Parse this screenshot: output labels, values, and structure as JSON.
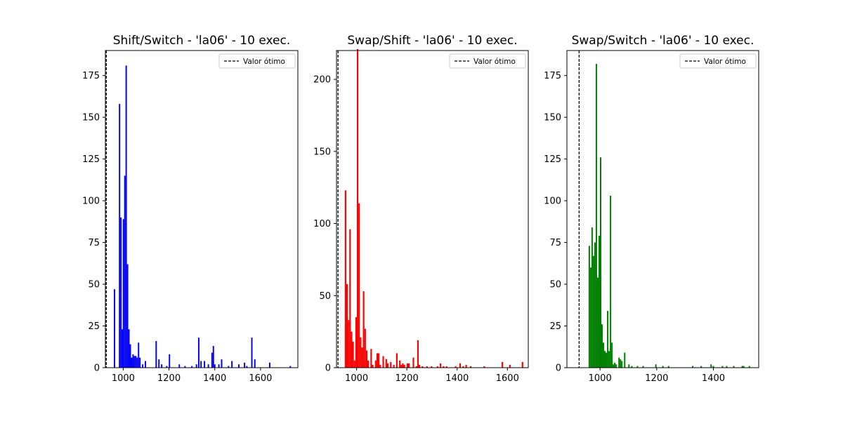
{
  "chart_data": [
    {
      "type": "bar",
      "title": "Shift/Switch - 'la06' - 10 exec.",
      "color": "#0000ff",
      "xlim": [
        922,
        1763
      ],
      "ylim": [
        0,
        190
      ],
      "xticks": [
        1000,
        1200,
        1400,
        1600
      ],
      "yticks": [
        0,
        25,
        50,
        75,
        100,
        125,
        150,
        175
      ],
      "optimal_value": 926,
      "legend": {
        "label": "Valor ótimo",
        "position": "top-right"
      },
      "bars": [
        {
          "x": 962,
          "y": 47
        },
        {
          "x": 984,
          "y": 158
        },
        {
          "x": 990,
          "y": 90
        },
        {
          "x": 996,
          "y": 23
        },
        {
          "x": 1001,
          "y": 89
        },
        {
          "x": 1007,
          "y": 115
        },
        {
          "x": 1013,
          "y": 181
        },
        {
          "x": 1019,
          "y": 62
        },
        {
          "x": 1025,
          "y": 23
        },
        {
          "x": 1031,
          "y": 14
        },
        {
          "x": 1037,
          "y": 6
        },
        {
          "x": 1043,
          "y": 8
        },
        {
          "x": 1049,
          "y": 7
        },
        {
          "x": 1055,
          "y": 7
        },
        {
          "x": 1061,
          "y": 6
        },
        {
          "x": 1067,
          "y": 15
        },
        {
          "x": 1073,
          "y": 6
        },
        {
          "x": 1085,
          "y": 2
        },
        {
          "x": 1097,
          "y": 4
        },
        {
          "x": 1144,
          "y": 16
        },
        {
          "x": 1156,
          "y": 5
        },
        {
          "x": 1168,
          "y": 2
        },
        {
          "x": 1190,
          "y": 1
        },
        {
          "x": 1202,
          "y": 8
        },
        {
          "x": 1245,
          "y": 2
        },
        {
          "x": 1270,
          "y": 1
        },
        {
          "x": 1300,
          "y": 1
        },
        {
          "x": 1320,
          "y": 2
        },
        {
          "x": 1330,
          "y": 18
        },
        {
          "x": 1340,
          "y": 4
        },
        {
          "x": 1355,
          "y": 4
        },
        {
          "x": 1372,
          "y": 2
        },
        {
          "x": 1388,
          "y": 9
        },
        {
          "x": 1394,
          "y": 13
        },
        {
          "x": 1400,
          "y": 2
        },
        {
          "x": 1418,
          "y": 2
        },
        {
          "x": 1430,
          "y": 5
        },
        {
          "x": 1460,
          "y": 1
        },
        {
          "x": 1475,
          "y": 4
        },
        {
          "x": 1505,
          "y": 2
        },
        {
          "x": 1530,
          "y": 3
        },
        {
          "x": 1540,
          "y": 1
        },
        {
          "x": 1562,
          "y": 18
        },
        {
          "x": 1575,
          "y": 5
        },
        {
          "x": 1640,
          "y": 3
        },
        {
          "x": 1730,
          "y": 1
        }
      ]
    },
    {
      "type": "bar",
      "title": "Swap/Shift - 'la06' - 10 exec.",
      "color": "#ff0000",
      "xlim": [
        920,
        1683
      ],
      "ylim": [
        0,
        220
      ],
      "xticks": [
        1000,
        1200,
        1400,
        1600
      ],
      "yticks": [
        0,
        50,
        100,
        150,
        200
      ],
      "optimal_value": 926,
      "legend": {
        "label": "Valor ótimo",
        "position": "top-right"
      },
      "bars": [
        {
          "x": 956,
          "y": 123
        },
        {
          "x": 962,
          "y": 58
        },
        {
          "x": 968,
          "y": 33
        },
        {
          "x": 974,
          "y": 96
        },
        {
          "x": 980,
          "y": 25
        },
        {
          "x": 986,
          "y": 18
        },
        {
          "x": 992,
          "y": 5
        },
        {
          "x": 998,
          "y": 35
        },
        {
          "x": 1004,
          "y": 221
        },
        {
          "x": 1010,
          "y": 114
        },
        {
          "x": 1016,
          "y": 21
        },
        {
          "x": 1022,
          "y": 14
        },
        {
          "x": 1028,
          "y": 53
        },
        {
          "x": 1034,
          "y": 27
        },
        {
          "x": 1040,
          "y": 12
        },
        {
          "x": 1046,
          "y": 5
        },
        {
          "x": 1058,
          "y": 13
        },
        {
          "x": 1064,
          "y": 2
        },
        {
          "x": 1076,
          "y": 5
        },
        {
          "x": 1082,
          "y": 10
        },
        {
          "x": 1088,
          "y": 10
        },
        {
          "x": 1094,
          "y": 2
        },
        {
          "x": 1106,
          "y": 8
        },
        {
          "x": 1118,
          "y": 6
        },
        {
          "x": 1124,
          "y": 3
        },
        {
          "x": 1136,
          "y": 4
        },
        {
          "x": 1148,
          "y": 2
        },
        {
          "x": 1160,
          "y": 10
        },
        {
          "x": 1172,
          "y": 5
        },
        {
          "x": 1178,
          "y": 2
        },
        {
          "x": 1184,
          "y": 3
        },
        {
          "x": 1190,
          "y": 2
        },
        {
          "x": 1202,
          "y": 3
        },
        {
          "x": 1208,
          "y": 3
        },
        {
          "x": 1226,
          "y": 7
        },
        {
          "x": 1238,
          "y": 1
        },
        {
          "x": 1244,
          "y": 19
        },
        {
          "x": 1250,
          "y": 2
        },
        {
          "x": 1262,
          "y": 1
        },
        {
          "x": 1280,
          "y": 1
        },
        {
          "x": 1298,
          "y": 1
        },
        {
          "x": 1322,
          "y": 1
        },
        {
          "x": 1334,
          "y": 3
        },
        {
          "x": 1346,
          "y": 1
        },
        {
          "x": 1358,
          "y": 1
        },
        {
          "x": 1394,
          "y": 1
        },
        {
          "x": 1412,
          "y": 3
        },
        {
          "x": 1424,
          "y": 1
        },
        {
          "x": 1436,
          "y": 2
        },
        {
          "x": 1454,
          "y": 1
        },
        {
          "x": 1508,
          "y": 1
        },
        {
          "x": 1580,
          "y": 4
        },
        {
          "x": 1610,
          "y": 2
        },
        {
          "x": 1660,
          "y": 4
        }
      ]
    },
    {
      "type": "bar",
      "title": "Swap/Switch - 'la06' - 10 exec.",
      "color": "#008000",
      "xlim": [
        883,
        1560
      ],
      "ylim": [
        0,
        190
      ],
      "xticks": [
        1000,
        1200,
        1400
      ],
      "yticks": [
        0,
        25,
        50,
        75,
        100,
        125,
        150,
        175
      ],
      "optimal_value": 926,
      "legend": {
        "label": "Valor ótimo",
        "position": "top-right"
      },
      "bars": [
        {
          "x": 962,
          "y": 73
        },
        {
          "x": 967,
          "y": 60
        },
        {
          "x": 972,
          "y": 84
        },
        {
          "x": 977,
          "y": 67
        },
        {
          "x": 982,
          "y": 75
        },
        {
          "x": 987,
          "y": 182
        },
        {
          "x": 992,
          "y": 54
        },
        {
          "x": 997,
          "y": 79
        },
        {
          "x": 1002,
          "y": 126
        },
        {
          "x": 1007,
          "y": 26
        },
        {
          "x": 1012,
          "y": 15
        },
        {
          "x": 1017,
          "y": 10
        },
        {
          "x": 1022,
          "y": 9
        },
        {
          "x": 1027,
          "y": 34
        },
        {
          "x": 1032,
          "y": 10
        },
        {
          "x": 1037,
          "y": 103
        },
        {
          "x": 1042,
          "y": 15
        },
        {
          "x": 1047,
          "y": 2
        },
        {
          "x": 1052,
          "y": 3
        },
        {
          "x": 1057,
          "y": 2
        },
        {
          "x": 1067,
          "y": 6
        },
        {
          "x": 1072,
          "y": 5
        },
        {
          "x": 1077,
          "y": 4
        },
        {
          "x": 1087,
          "y": 9
        },
        {
          "x": 1102,
          "y": 2
        },
        {
          "x": 1112,
          "y": 1
        },
        {
          "x": 1132,
          "y": 1
        },
        {
          "x": 1152,
          "y": 1
        },
        {
          "x": 1197,
          "y": 2
        },
        {
          "x": 1222,
          "y": 1
        },
        {
          "x": 1242,
          "y": 1
        },
        {
          "x": 1327,
          "y": 1
        },
        {
          "x": 1357,
          "y": 1
        },
        {
          "x": 1392,
          "y": 2
        },
        {
          "x": 1400,
          "y": 1
        },
        {
          "x": 1432,
          "y": 1
        },
        {
          "x": 1447,
          "y": 1
        },
        {
          "x": 1472,
          "y": 1
        },
        {
          "x": 1502,
          "y": 1
        },
        {
          "x": 1507,
          "y": 1
        },
        {
          "x": 1527,
          "y": 1
        }
      ]
    }
  ]
}
